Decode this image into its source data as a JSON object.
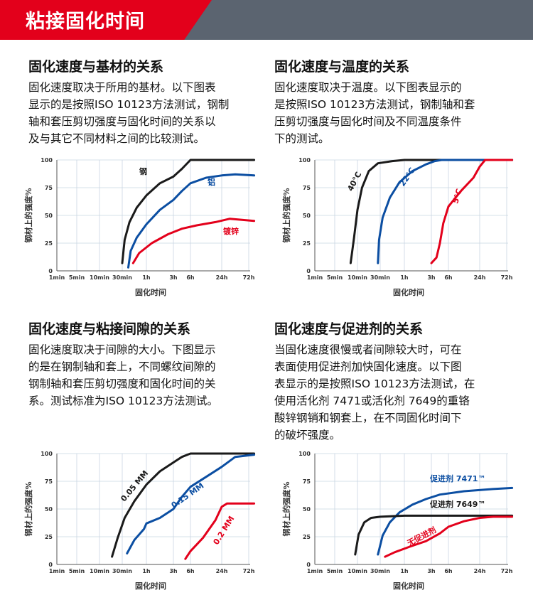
{
  "header": {
    "title": "粘接固化时间"
  },
  "colors": {
    "banner_red": "#e3001b",
    "banner_gray": "#5b6470",
    "black": "#1a1a1a",
    "blue": "#0b4ea2",
    "red": "#e3001b"
  },
  "sections": [
    {
      "title": "固化速度与基材的关系",
      "lines": [
        "固化速度取决于所用的基材。以下图表",
        "显示的是按照ISO 10123方法测试，钢制",
        "轴和套压剪切强度与固化时间的关系以",
        "及与其它不同材料之间的比较测试。"
      ]
    },
    {
      "title": "固化速度与温度的关系",
      "lines": [
        "固化速度取决于温度。以下图表显示的",
        "是按照ISO 10123方法测试，钢制轴和套",
        "压剪切强度与固化时间及不同温度条件",
        "下的测试。"
      ]
    },
    {
      "title": "固化速度与粘接间隙的关系",
      "lines": [
        "固化速度取决于间隙的大小。下图显示",
        "的是在钢制轴和套上，不同螺纹间隙的",
        "钢制轴和套压剪切强度和固化时间的关",
        "系。测试标准为ISO 10123方法测试。"
      ]
    },
    {
      "title": "固化速度与促进剂的关系",
      "lines": [
        "当固化速度很慢或者间隙较大时，可在",
        "表面使用促进剂加快固化速度。以下图",
        "表显示的是按照ISO 10123方法测试，在",
        "使用活化剂 7471或活化剂 7649的重铬",
        "酸锌钢销和钢套上，在不同固化时间下",
        "的破坏强度。"
      ]
    }
  ],
  "chart_data": [
    {
      "type": "line",
      "xlabel": "固化时间",
      "ylabel": "钢材上的强度%",
      "x_ticks": [
        "1min",
        "5min",
        "10min",
        "30min",
        "1h",
        "3h",
        "6h",
        "24h",
        "72h"
      ],
      "y_ticks": [
        0,
        25,
        50,
        75,
        100
      ],
      "ylim": [
        0,
        100
      ],
      "series": [
        {
          "name": "钢",
          "color": "#1a1a1a",
          "points": [
            [
              3.0,
              7
            ],
            [
              3.1,
              28
            ],
            [
              3.3,
              44
            ],
            [
              3.6,
              57
            ],
            [
              4.0,
              68
            ],
            [
              4.5,
              79
            ],
            [
              5.0,
              85
            ],
            [
              5.5,
              92
            ],
            [
              6.0,
              100
            ],
            [
              7.0,
              100
            ],
            [
              8.2,
              100
            ]
          ]
        },
        {
          "name": "铝",
          "color": "#0b4ea2",
          "points": [
            [
              3.25,
              3
            ],
            [
              3.35,
              18
            ],
            [
              3.6,
              30
            ],
            [
              4.0,
              42
            ],
            [
              4.5,
              55
            ],
            [
              5.0,
              64
            ],
            [
              5.5,
              72
            ],
            [
              6.0,
              79
            ],
            [
              6.5,
              84
            ],
            [
              7.0,
              86
            ],
            [
              7.5,
              87
            ],
            [
              8.2,
              86
            ]
          ]
        },
        {
          "name": "镀锌",
          "color": "#e3001b",
          "points": [
            [
              3.45,
              7
            ],
            [
              3.7,
              16
            ],
            [
              4.2,
              25
            ],
            [
              4.8,
              33
            ],
            [
              5.5,
              38
            ],
            [
              6.2,
              41
            ],
            [
              6.8,
              44
            ],
            [
              7.3,
              47
            ],
            [
              8.2,
              45
            ]
          ]
        }
      ]
    },
    {
      "type": "line",
      "xlabel": "固化时间",
      "ylabel": "钢材上的强度%",
      "x_ticks": [
        "1min",
        "5min",
        "10min",
        "30min",
        "1h",
        "3h",
        "6h",
        "24h",
        "72h"
      ],
      "y_ticks": [
        0,
        25,
        50,
        75,
        100
      ],
      "ylim": [
        0,
        100
      ],
      "series": [
        {
          "name": "40°C",
          "color": "#1a1a1a",
          "points": [
            [
              1.7,
              7
            ],
            [
              1.85,
              30
            ],
            [
              2.0,
              55
            ],
            [
              2.2,
              75
            ],
            [
              2.5,
              90
            ],
            [
              2.9,
              97
            ],
            [
              3.5,
              99
            ],
            [
              4.0,
              100
            ],
            [
              8.2,
              100
            ]
          ]
        },
        {
          "name": "22°C",
          "color": "#0b4ea2",
          "points": [
            [
              2.9,
              7
            ],
            [
              2.95,
              28
            ],
            [
              3.1,
              48
            ],
            [
              3.4,
              66
            ],
            [
              3.8,
              80
            ],
            [
              4.3,
              90
            ],
            [
              4.8,
              96
            ],
            [
              5.2,
              99
            ],
            [
              5.6,
              100
            ],
            [
              8.2,
              100
            ]
          ]
        },
        {
          "name": "5°C",
          "color": "#e3001b",
          "points": [
            [
              5.0,
              7
            ],
            [
              5.3,
              12
            ],
            [
              5.5,
              25
            ],
            [
              5.7,
              43
            ],
            [
              6.0,
              58
            ],
            [
              6.4,
              72
            ],
            [
              6.8,
              84
            ],
            [
              7.0,
              94
            ],
            [
              7.2,
              100
            ],
            [
              8.2,
              100
            ]
          ]
        }
      ]
    },
    {
      "type": "line",
      "xlabel": "固化时间",
      "ylabel": "钢材上的强度%",
      "x_ticks": [
        "1min",
        "5min",
        "10min",
        "30min",
        "1h",
        "3h",
        "6h",
        "24h",
        "72h"
      ],
      "y_ticks": [
        0,
        25,
        50,
        75,
        100
      ],
      "ylim": [
        0,
        100
      ],
      "series": [
        {
          "name": "0.05 MM",
          "color": "#1a1a1a",
          "points": [
            [
              2.55,
              7
            ],
            [
              2.8,
              24
            ],
            [
              3.1,
              42
            ],
            [
              3.5,
              57
            ],
            [
              4.0,
              72
            ],
            [
              4.5,
              84
            ],
            [
              5.0,
              92
            ],
            [
              5.5,
              97
            ],
            [
              6.0,
              100
            ],
            [
              8.2,
              100
            ]
          ]
        },
        {
          "name": "0.15 MM",
          "color": "#0b4ea2",
          "points": [
            [
              3.2,
              10
            ],
            [
              3.5,
              22
            ],
            [
              3.9,
              32
            ],
            [
              4.0,
              37
            ],
            [
              4.5,
              42
            ],
            [
              5.0,
              50
            ],
            [
              5.5,
              61
            ],
            [
              6.0,
              70
            ],
            [
              6.5,
              79
            ],
            [
              7.0,
              88
            ],
            [
              7.5,
              97
            ],
            [
              8.2,
              99
            ]
          ]
        },
        {
          "name": "0.2 MM",
          "color": "#e3001b",
          "points": [
            [
              5.7,
              5
            ],
            [
              6.0,
              12
            ],
            [
              6.4,
              24
            ],
            [
              6.8,
              40
            ],
            [
              7.0,
              52
            ],
            [
              7.2,
              55
            ],
            [
              8.2,
              55
            ]
          ]
        }
      ]
    },
    {
      "type": "line",
      "xlabel": "固化时间",
      "ylabel": "钢材上的强度%",
      "x_ticks": [
        "1min",
        "5min",
        "10min",
        "30min",
        "1h",
        "3h",
        "6h",
        "24h",
        "72h"
      ],
      "y_ticks": [
        0,
        25,
        50,
        75,
        100
      ],
      "ylim": [
        0,
        100
      ],
      "series": [
        {
          "name": "促进剂 7471™",
          "color": "#0b4ea2",
          "points": [
            [
              2.9,
              9
            ],
            [
              3.1,
              26
            ],
            [
              3.4,
              38
            ],
            [
              3.8,
              47
            ],
            [
              4.3,
              54
            ],
            [
              4.8,
              59
            ],
            [
              5.5,
              63
            ],
            [
              6.5,
              66
            ],
            [
              7.5,
              68
            ],
            [
              8.2,
              69
            ]
          ]
        },
        {
          "name": "促进剂 7649™",
          "color": "#1a1a1a",
          "points": [
            [
              1.9,
              9
            ],
            [
              2.05,
              27
            ],
            [
              2.3,
              38
            ],
            [
              2.6,
              42
            ],
            [
              3.0,
              43
            ],
            [
              4.0,
              44
            ],
            [
              6.0,
              44
            ],
            [
              8.2,
              44
            ]
          ]
        },
        {
          "name": "无促进剂",
          "color": "#e3001b",
          "points": [
            [
              3.2,
              7
            ],
            [
              3.6,
              11
            ],
            [
              4.2,
              16
            ],
            [
              4.8,
              21
            ],
            [
              5.5,
              28
            ],
            [
              6.0,
              34
            ],
            [
              6.5,
              39
            ],
            [
              7.0,
              42
            ],
            [
              7.5,
              43
            ],
            [
              8.2,
              43
            ]
          ]
        }
      ]
    }
  ]
}
